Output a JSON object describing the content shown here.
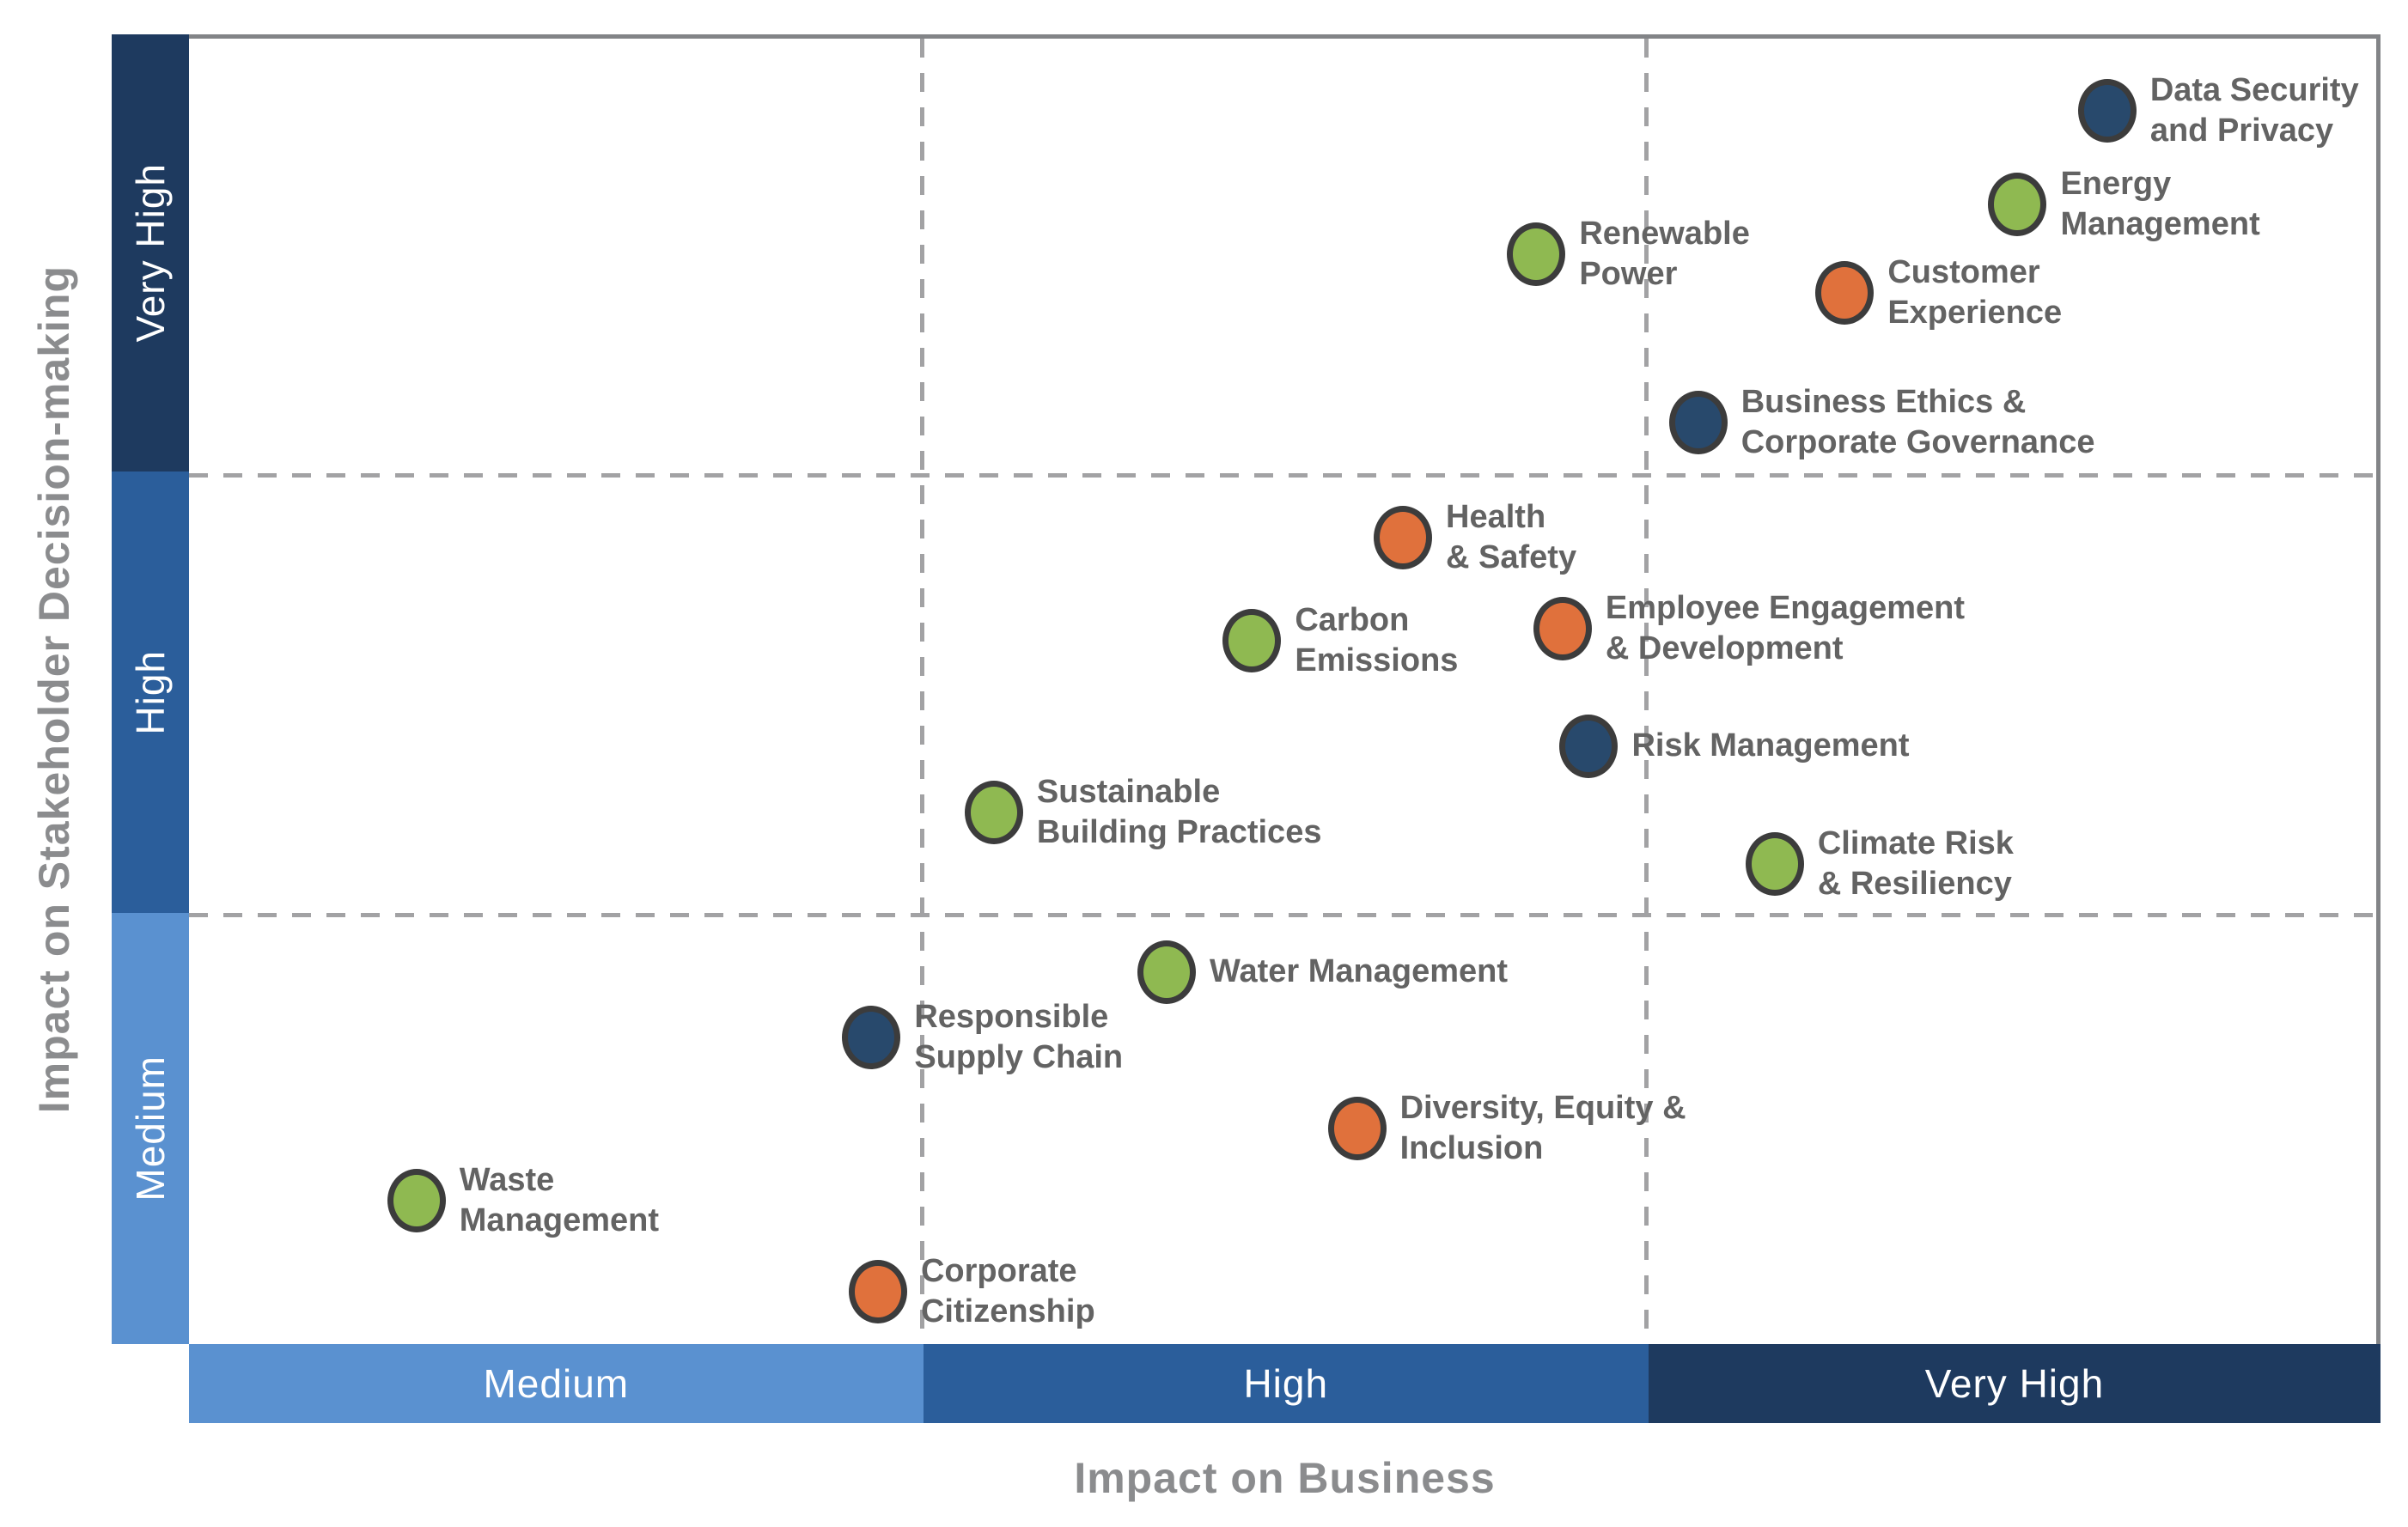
{
  "titles": {
    "x_axis": "Impact on Business",
    "y_axis": "Impact on Stakeholder Decision-making"
  },
  "colors": {
    "band_very_high": "#1e3a5f",
    "band_high": "#2b5e9b",
    "band_medium": "#5a91d0",
    "dot_navy": "#28496c",
    "dot_green": "#8fb951",
    "dot_orange": "#e0713c",
    "dot_border": "#3c3c3c",
    "label_text": "#636363",
    "axis_title_text": "#8b8c8e",
    "band_label_text": "#ffffff",
    "gridline": "#a2a2a4",
    "plot_border": "#828487"
  },
  "y_bands_top_to_bottom": [
    {
      "label": "Very High",
      "color": "#1e3a5f"
    },
    {
      "label": "High",
      "color": "#2b5e9b"
    },
    {
      "label": "Medium",
      "color": "#5a91d0"
    }
  ],
  "x_bands_left_to_right": [
    {
      "label": "Medium",
      "color": "#5a91d0"
    },
    {
      "label": "High",
      "color": "#2b5e9b"
    },
    {
      "label": "Very High",
      "color": "#1e3a5f"
    }
  ],
  "chart_data": {
    "type": "scatter",
    "title": "ESG materiality matrix",
    "xlabel": "Impact on Business",
    "ylabel": "Impact on Stakeholder Decision-making",
    "x_axis_bands": [
      "Medium",
      "High",
      "Very High"
    ],
    "y_axis_bands_top_to_bottom": [
      "Very High",
      "High",
      "Medium"
    ],
    "grid": "dashed 3x3",
    "legend": "none",
    "x_band_bounds_pct": [
      0,
      33.5,
      66.6,
      100
    ],
    "y_band_bounds_pct": [
      0,
      33.4,
      67.1,
      100
    ],
    "points": [
      {
        "label": "Data Security and Privacy",
        "lines": [
          "Data Security",
          "and Privacy"
        ],
        "x_pct": 87.7,
        "y_pct": 5.5,
        "x_band": "Very High",
        "y_band": "Very High",
        "color": "#28496c"
      },
      {
        "label": "Energy Management",
        "lines": [
          "Energy",
          "Management"
        ],
        "x_pct": 83.6,
        "y_pct": 12.7,
        "x_band": "Very High",
        "y_band": "Very High",
        "color": "#8fb951"
      },
      {
        "label": "Renewable Power",
        "lines": [
          "Renewable",
          "Power"
        ],
        "x_pct": 61.6,
        "y_pct": 16.5,
        "x_band": "High",
        "y_band": "Very High",
        "color": "#8fb951"
      },
      {
        "label": "Customer Experience",
        "lines": [
          "Customer",
          "Experience"
        ],
        "x_pct": 75.7,
        "y_pct": 19.5,
        "x_band": "Very High",
        "y_band": "Very High",
        "color": "#e0713c"
      },
      {
        "label": "Business Ethics & Corporate Governance",
        "lines": [
          "Business Ethics &",
          "Corporate Governance"
        ],
        "x_pct": 69.0,
        "y_pct": 29.4,
        "x_band": "Very High",
        "y_band": "Very High",
        "color": "#28496c"
      },
      {
        "label": "Health & Safety",
        "lines": [
          "Health",
          "& Safety"
        ],
        "x_pct": 55.5,
        "y_pct": 38.2,
        "x_band": "High",
        "y_band": "High",
        "color": "#e0713c"
      },
      {
        "label": "Carbon Emissions",
        "lines": [
          "Carbon",
          "Emissions"
        ],
        "x_pct": 48.6,
        "y_pct": 46.1,
        "x_band": "High",
        "y_band": "High",
        "color": "#8fb951"
      },
      {
        "label": "Employee Engagement & Development",
        "lines": [
          "Employee Engagement",
          "& Development"
        ],
        "x_pct": 62.8,
        "y_pct": 45.2,
        "x_band": "High",
        "y_band": "High",
        "color": "#e0713c"
      },
      {
        "label": "Risk Management",
        "lines": [
          "Risk Management"
        ],
        "x_pct": 64.0,
        "y_pct": 54.2,
        "x_band": "High",
        "y_band": "High",
        "color": "#28496c"
      },
      {
        "label": "Sustainable Building Practices",
        "lines": [
          "Sustainable",
          "Building Practices"
        ],
        "x_pct": 36.8,
        "y_pct": 59.3,
        "x_band": "High",
        "y_band": "High",
        "color": "#8fb951"
      },
      {
        "label": "Climate Risk & Resiliency",
        "lines": [
          "Climate Risk",
          "& Resiliency"
        ],
        "x_pct": 72.5,
        "y_pct": 63.2,
        "x_band": "Very High",
        "y_band": "High",
        "color": "#8fb951"
      },
      {
        "label": "Water Management",
        "lines": [
          "Water Management"
        ],
        "x_pct": 44.7,
        "y_pct": 71.5,
        "x_band": "High",
        "y_band": "Medium",
        "color": "#8fb951"
      },
      {
        "label": "Responsible Supply Chain",
        "lines": [
          "Responsible",
          "Supply Chain"
        ],
        "x_pct": 31.2,
        "y_pct": 76.5,
        "x_band": "Medium",
        "y_band": "Medium",
        "color": "#28496c"
      },
      {
        "label": "Diversity, Equity & Inclusion",
        "lines": [
          "Diversity, Equity &",
          "Inclusion"
        ],
        "x_pct": 53.4,
        "y_pct": 83.5,
        "x_band": "High",
        "y_band": "Medium",
        "color": "#e0713c"
      },
      {
        "label": "Waste Management",
        "lines": [
          "Waste",
          "Management"
        ],
        "x_pct": 10.4,
        "y_pct": 89.0,
        "x_band": "Medium",
        "y_band": "Medium",
        "color": "#8fb951"
      },
      {
        "label": "Corporate Citizenship",
        "lines": [
          "Corporate",
          "Citizenship"
        ],
        "x_pct": 31.5,
        "y_pct": 96.0,
        "x_band": "Medium",
        "y_band": "Medium",
        "color": "#e0713c"
      }
    ]
  }
}
